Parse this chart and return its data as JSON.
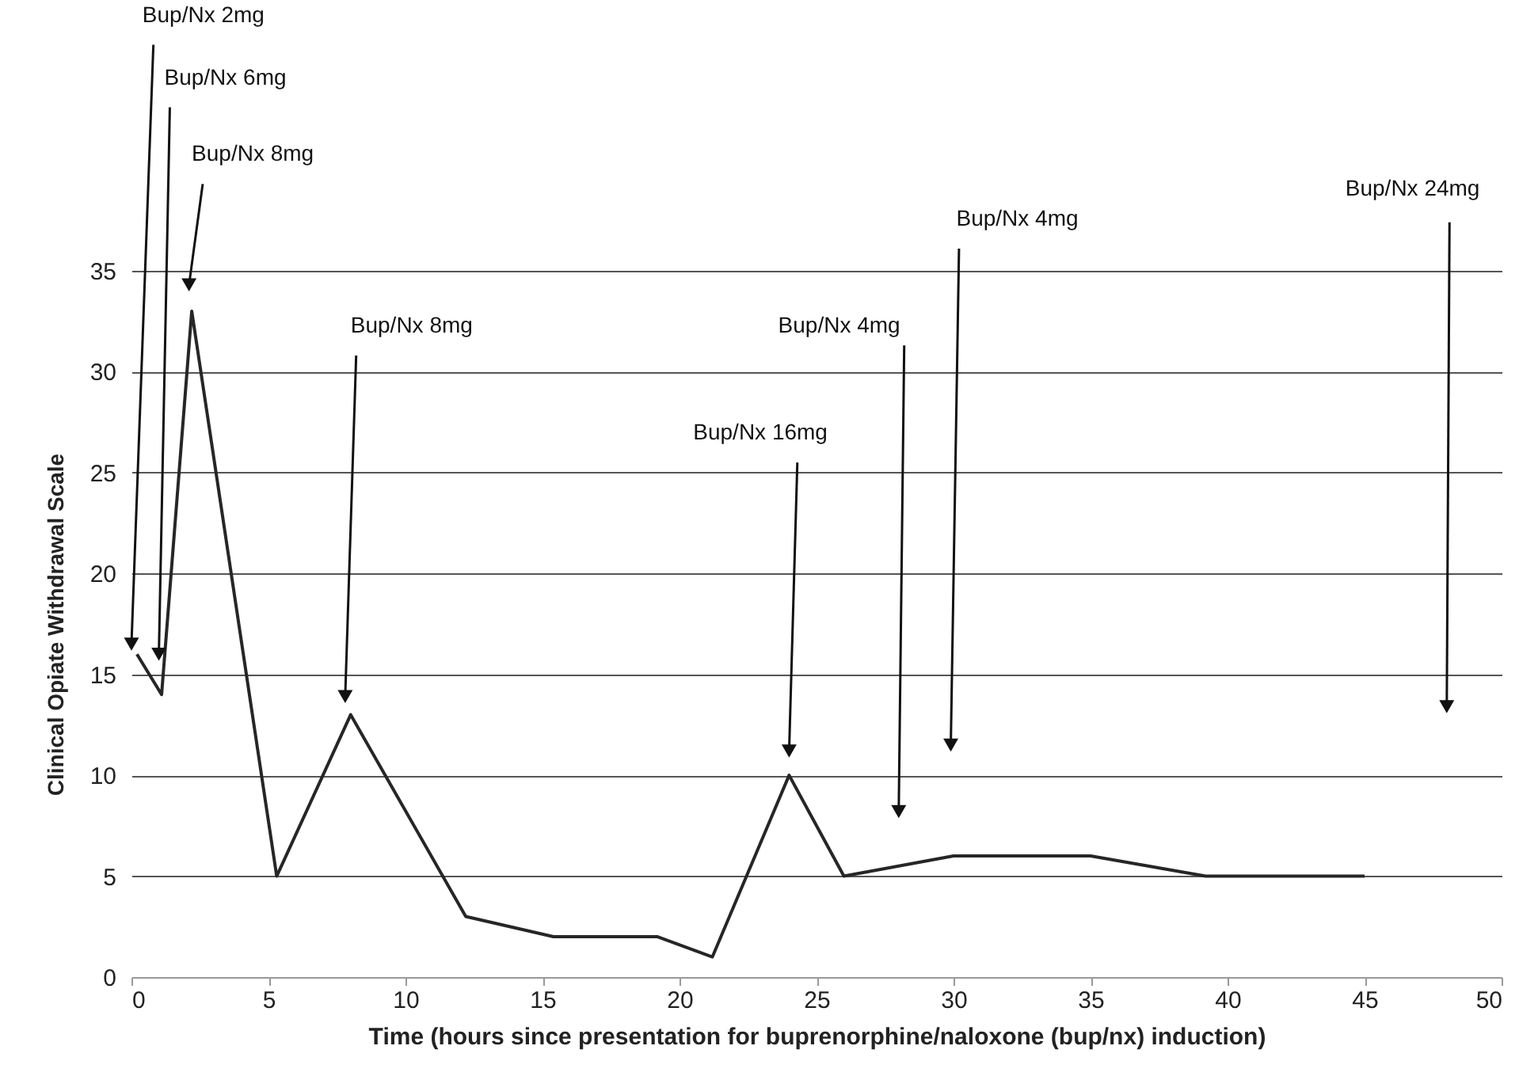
{
  "chart_data": {
    "type": "line",
    "xlabel": "Time (hours since presentation for buprenorphine/naloxone (bup/nx) induction)",
    "ylabel": "Clinical Opiate Withdrawal Scale",
    "x": [
      0.2,
      1.1,
      2.2,
      5.3,
      8,
      12.2,
      15.4,
      19.2,
      21.2,
      24,
      26,
      30,
      35,
      39.2,
      45
    ],
    "series": [
      {
        "color": "#262626",
        "values": [
          16,
          14,
          33,
          5,
          13,
          3,
          2,
          2,
          1,
          10,
          5,
          6,
          6,
          5,
          5
        ]
      }
    ],
    "xlim": [
      0,
      50
    ],
    "xticks": [
      0,
      5,
      10,
      15,
      20,
      25,
      30,
      35,
      40,
      45,
      50
    ],
    "ylim": [
      0,
      35
    ],
    "yticks": [
      0,
      5,
      10,
      15,
      20,
      25,
      30,
      35
    ],
    "grid": "y",
    "marker": "none",
    "line_style": "solid",
    "annotations": [
      {
        "text": "Bup/Nx 2mg",
        "x": 0,
        "y": 16.5
      },
      {
        "text": "Bup/Nx 6mg",
        "x": 1,
        "y": 16
      },
      {
        "text": "Bup/Nx 8mg",
        "x": 2.1,
        "y": 34.3
      },
      {
        "text": "Bup/Nx 8mg",
        "x": 7.8,
        "y": 13.9
      },
      {
        "text": "Bup/Nx 16mg",
        "x": 24,
        "y": 11.2
      },
      {
        "text": "Bup/Nx 4mg",
        "x": 28,
        "y": 8.2
      },
      {
        "text": "Bup/Nx 4mg",
        "x": 29.9,
        "y": 11.5
      },
      {
        "text": "Bup/Nx 24mg",
        "x": 48,
        "y": 13.4
      }
    ]
  }
}
